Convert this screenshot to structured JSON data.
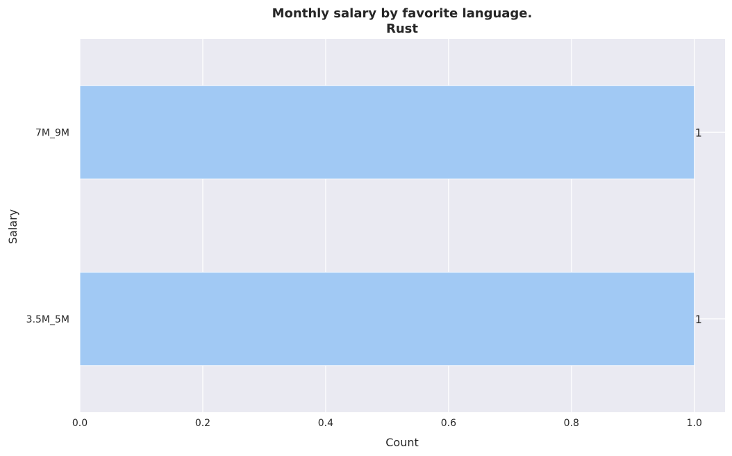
{
  "chart_data": {
    "type": "bar",
    "orientation": "horizontal",
    "title": "Monthly salary by favorite language.",
    "subtitle": "Rust",
    "xlabel": "Count",
    "ylabel": "Salary",
    "categories": [
      "7M_9M",
      "3.5M_5M"
    ],
    "values": [
      1,
      1
    ],
    "data_labels": [
      "1",
      "1"
    ],
    "xlim": [
      0,
      1.05
    ],
    "xticks": [
      0.0,
      0.2,
      0.4,
      0.6,
      0.8,
      1.0
    ],
    "xtick_labels": [
      "0.0",
      "0.2",
      "0.4",
      "0.6",
      "0.8",
      "1.0"
    ],
    "grid": true,
    "legend": "none",
    "colors": {
      "bar": "#a1c9f4",
      "plot_background": "#eaeaf2",
      "grid": "#ffffff",
      "text": "#262626"
    }
  }
}
